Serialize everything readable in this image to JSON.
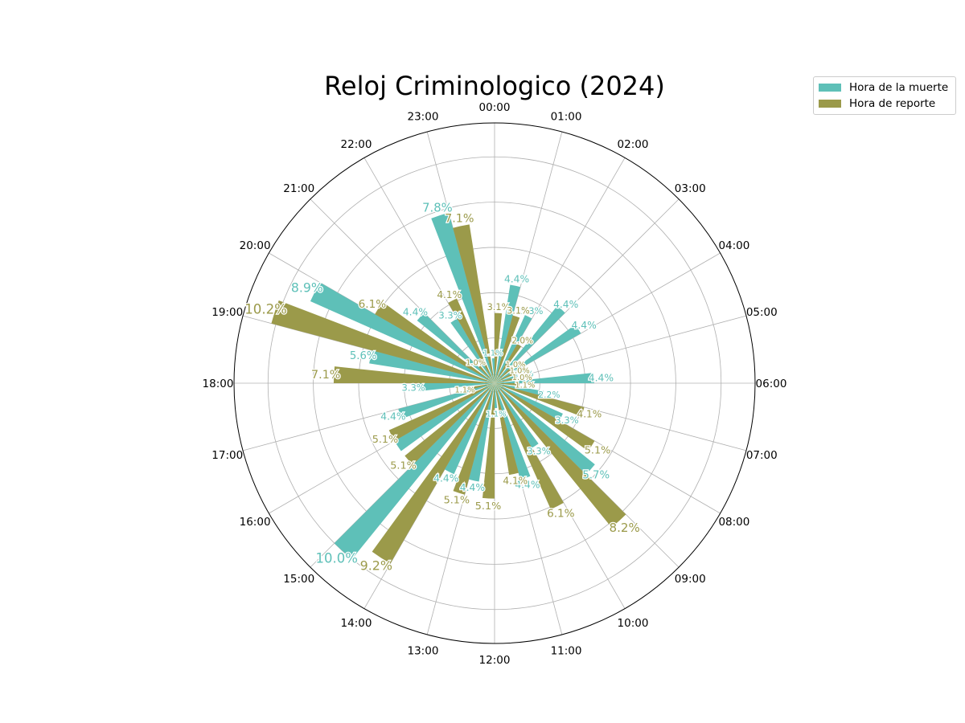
{
  "chart_data": {
    "type": "polar-bar",
    "title": "Reloj Criminologico (2024)",
    "theta_labels": [
      "00:00",
      "01:00",
      "02:00",
      "03:00",
      "04:00",
      "05:00",
      "06:00",
      "07:00",
      "08:00",
      "09:00",
      "10:00",
      "11:00",
      "12:00",
      "13:00",
      "14:00",
      "15:00",
      "16:00",
      "17:00",
      "18:00",
      "19:00",
      "20:00",
      "21:00",
      "22:00",
      "23:00"
    ],
    "rlim": [
      0,
      11.5
    ],
    "grid": true,
    "legend_position": "top-right, outside plot",
    "series": [
      {
        "name": "Hora de la muerte",
        "color": "#5ec0b8",
        "values": [
          1.1,
          4.4,
          3.3,
          4.4,
          4.4,
          1.1,
          4.4,
          2.2,
          3.3,
          5.7,
          3.3,
          4.4,
          1.1,
          4.4,
          4.4,
          10.0,
          5.1,
          4.4,
          3.3,
          5.6,
          8.9,
          4.4,
          3.3,
          7.8
        ],
        "labels": [
          "1.1%",
          "4.4%",
          "3.3%",
          "4.4%",
          "4.4%",
          "1.1%",
          "4.4%",
          "2.2%",
          "3.3%",
          "5.7%",
          "3.3%",
          "4.4%",
          "1.1%",
          "4.4%",
          "4.4%",
          "10.0%",
          "",
          "4.4%",
          "3.3%",
          "5.6%",
          "8.9%",
          "4.4%",
          "3.3%",
          "7.8%"
        ]
      },
      {
        "name": "Hora de reporte",
        "color": "#9b9a4a",
        "values": [
          3.1,
          3.1,
          2.0,
          1.0,
          1.0,
          1.0,
          1.1,
          4.1,
          5.1,
          8.2,
          6.1,
          4.1,
          5.1,
          5.1,
          9.2,
          5.1,
          5.1,
          1.1,
          7.1,
          10.2,
          6.1,
          1.0,
          4.1,
          7.1
        ],
        "labels": [
          "3.1%",
          "3.1%",
          "2.0%",
          "1.0%",
          "1.0%",
          "1.0%",
          "1.1%",
          "4.1%",
          "5.1%",
          "8.2%",
          "6.1%",
          "4.1%",
          "5.1%",
          "5.1%",
          "9.2%",
          "5.1%",
          "5.1%",
          "1.1%",
          "7.1%",
          "10.2%",
          "6.1%",
          "1.0%",
          "4.1%",
          "7.1%"
        ]
      }
    ]
  }
}
